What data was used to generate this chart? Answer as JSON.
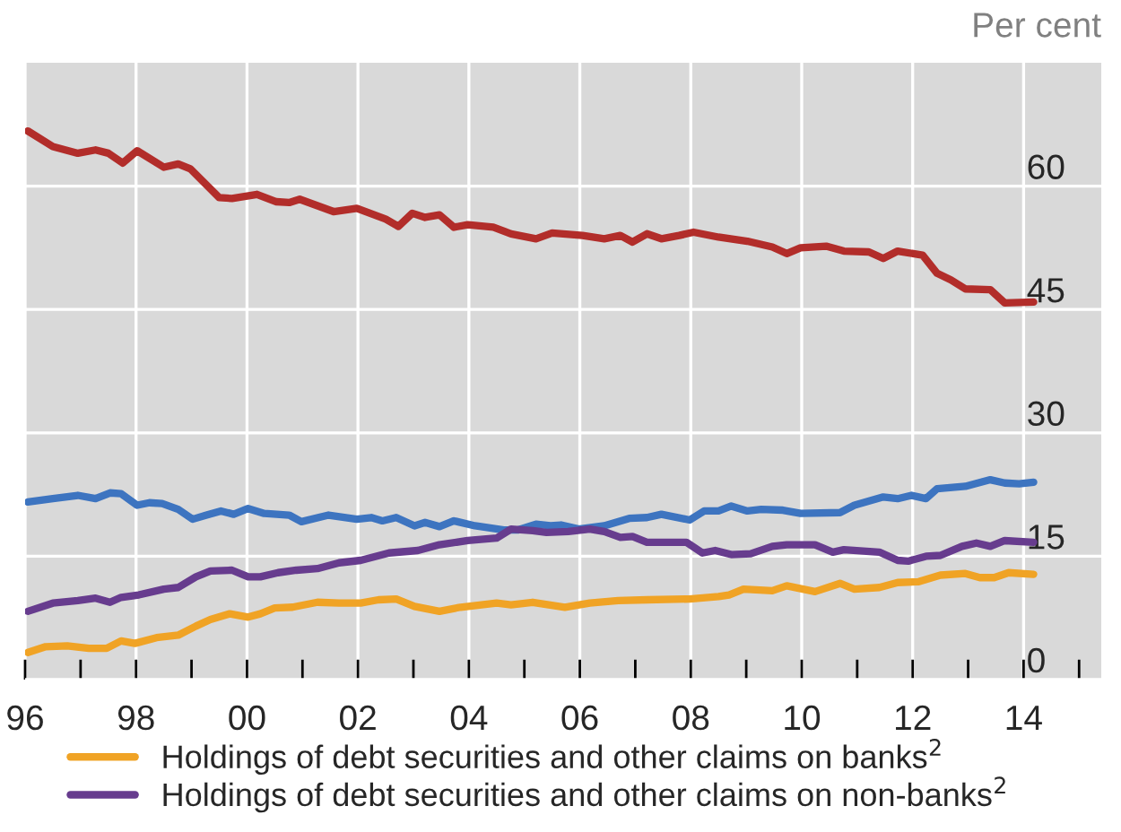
{
  "chart_data": {
    "type": "line",
    "ylabel": "Per cent",
    "xlim": [
      1996,
      2015.4
    ],
    "ylim": [
      0,
      75
    ],
    "xticks": [
      {
        "value": 1996,
        "label": "96"
      },
      {
        "value": 1997,
        "label": null
      },
      {
        "value": 1998,
        "label": "98"
      },
      {
        "value": 1999,
        "label": null
      },
      {
        "value": 2000,
        "label": "00"
      },
      {
        "value": 2001,
        "label": null
      },
      {
        "value": 2002,
        "label": "02"
      },
      {
        "value": 2003,
        "label": null
      },
      {
        "value": 2004,
        "label": "04"
      },
      {
        "value": 2005,
        "label": null
      },
      {
        "value": 2006,
        "label": "06"
      },
      {
        "value": 2007,
        "label": null
      },
      {
        "value": 2008,
        "label": "08"
      },
      {
        "value": 2009,
        "label": null
      },
      {
        "value": 2010,
        "label": "10"
      },
      {
        "value": 2011,
        "label": null
      },
      {
        "value": 2012,
        "label": "12"
      },
      {
        "value": 2013,
        "label": null
      },
      {
        "value": 2014,
        "label": "14"
      },
      {
        "value": 2015,
        "label": null
      }
    ],
    "yticks": [
      0,
      15,
      30,
      45,
      60
    ],
    "grid": true,
    "legend": "bottom",
    "marker": "none",
    "line_style": "solid",
    "series": [
      {
        "color": "#b22d2a",
        "x": [
          1996.05,
          1996.5,
          1996.95,
          1997.27,
          1997.5,
          1997.76,
          1998.02,
          1998.5,
          1998.76,
          1998.98,
          1999.5,
          1999.73,
          2000.18,
          2000.53,
          2000.76,
          2000.95,
          2001.56,
          2001.98,
          2002.5,
          2002.73,
          2002.98,
          2003.21,
          2003.47,
          2003.73,
          2003.98,
          2004.44,
          2004.76,
          2005.21,
          2005.5,
          2006.05,
          2006.44,
          2006.73,
          2006.95,
          2007.21,
          2007.47,
          2007.79,
          2008.05,
          2008.5,
          2009.02,
          2009.47,
          2009.73,
          2009.98,
          2010.44,
          2010.76,
          2011.21,
          2011.47,
          2011.73,
          2012.18,
          2012.44,
          2012.69,
          2012.95,
          2013.4,
          2013.66,
          2014.18
        ],
        "values": [
          66.7,
          64.8,
          64.0,
          64.4,
          64.0,
          62.8,
          64.3,
          62.3,
          62.7,
          62.1,
          58.6,
          58.5,
          59.0,
          58.1,
          58.0,
          58.4,
          56.9,
          57.3,
          56.0,
          55.1,
          56.7,
          56.2,
          56.5,
          55.0,
          55.3,
          55.0,
          54.2,
          53.6,
          54.3,
          54.0,
          53.6,
          54.0,
          53.2,
          54.2,
          53.6,
          54.0,
          54.4,
          53.8,
          53.3,
          52.6,
          51.8,
          52.5,
          52.7,
          52.1,
          52.0,
          51.2,
          52.1,
          51.6,
          49.4,
          48.6,
          47.5,
          47.4,
          45.8,
          45.9
        ]
      },
      {
        "color": "#3d74c0",
        "x": [
          1996.05,
          1996.5,
          1996.95,
          1997.27,
          1997.53,
          1997.73,
          1998.02,
          1998.24,
          1998.47,
          1998.76,
          1999.02,
          1999.27,
          1999.53,
          1999.76,
          2000.02,
          2000.31,
          2000.76,
          2000.98,
          2001.47,
          2001.98,
          2002.24,
          2002.44,
          2002.69,
          2003.02,
          2003.21,
          2003.47,
          2003.73,
          2004.11,
          2004.63,
          2004.89,
          2005.21,
          2005.47,
          2005.66,
          2005.98,
          2006.44,
          2006.89,
          2007.21,
          2007.47,
          2007.98,
          2008.24,
          2008.5,
          2008.73,
          2009.02,
          2009.27,
          2009.66,
          2009.98,
          2010.69,
          2010.95,
          2011.47,
          2011.73,
          2011.98,
          2012.24,
          2012.44,
          2012.95,
          2013.4,
          2013.66,
          2013.92,
          2014.18
        ],
        "values": [
          21.6,
          22.0,
          22.4,
          22.0,
          22.7,
          22.6,
          21.2,
          21.5,
          21.4,
          20.7,
          19.5,
          20.0,
          20.5,
          20.1,
          20.8,
          20.2,
          20.0,
          19.2,
          20.0,
          19.5,
          19.7,
          19.3,
          19.7,
          18.7,
          19.1,
          18.6,
          19.3,
          18.7,
          18.2,
          18.2,
          18.9,
          18.7,
          18.8,
          18.3,
          18.7,
          19.6,
          19.7,
          20.1,
          19.4,
          20.5,
          20.5,
          21.1,
          20.5,
          20.7,
          20.6,
          20.2,
          20.3,
          21.2,
          22.2,
          22.0,
          22.4,
          22.0,
          23.2,
          23.5,
          24.3,
          23.9,
          23.8,
          24.0
        ]
      },
      {
        "name": "Holdings of debt securities and other claims on banks$^{2}$",
        "color": "#f0a325",
        "x": [
          1996.05,
          1996.37,
          1996.76,
          1997.15,
          1997.47,
          1997.73,
          1997.98,
          1998.37,
          1998.76,
          1999.08,
          1999.34,
          1999.69,
          2000.02,
          2000.24,
          2000.5,
          2000.82,
          2001.27,
          2001.66,
          2002.05,
          2002.37,
          2002.69,
          2003.02,
          2003.47,
          2003.85,
          2004.5,
          2004.76,
          2005.15,
          2005.73,
          2006.18,
          2006.69,
          2007.21,
          2007.98,
          2008.5,
          2008.69,
          2008.95,
          2009.47,
          2009.73,
          2010.24,
          2010.69,
          2010.95,
          2011.4,
          2011.73,
          2012.11,
          2012.5,
          2012.95,
          2013.21,
          2013.47,
          2013.73,
          2014.18
        ],
        "values": [
          3.3,
          4.0,
          4.1,
          3.8,
          3.8,
          4.7,
          4.4,
          5.1,
          5.4,
          6.5,
          7.3,
          8.0,
          7.6,
          8.0,
          8.7,
          8.8,
          9.4,
          9.3,
          9.3,
          9.7,
          9.8,
          8.9,
          8.3,
          8.8,
          9.3,
          9.1,
          9.4,
          8.8,
          9.3,
          9.6,
          9.7,
          9.8,
          10.1,
          10.3,
          11.0,
          10.8,
          11.4,
          10.7,
          11.7,
          11.0,
          11.2,
          11.8,
          11.9,
          12.7,
          12.9,
          12.4,
          12.4,
          13.0,
          12.8
        ]
      },
      {
        "name": "Holdings of debt securities and other claims on non-banks$^{2}$",
        "color": "#673c8e",
        "x": [
          1996.05,
          1996.5,
          1996.95,
          1997.27,
          1997.53,
          1997.73,
          1998.05,
          1998.5,
          1998.76,
          1999.08,
          1999.34,
          1999.73,
          2000.02,
          2000.24,
          2000.56,
          2000.89,
          2001.27,
          2001.66,
          2002.05,
          2002.56,
          2003.08,
          2003.47,
          2003.98,
          2004.5,
          2004.76,
          2005.15,
          2005.4,
          2005.79,
          2006.18,
          2006.44,
          2006.73,
          2006.95,
          2007.21,
          2007.92,
          2008.21,
          2008.44,
          2008.73,
          2009.08,
          2009.47,
          2009.73,
          2010.24,
          2010.56,
          2010.76,
          2011.4,
          2011.73,
          2011.92,
          2012.24,
          2012.5,
          2012.89,
          2013.15,
          2013.4,
          2013.66,
          2014.18
        ],
        "values": [
          8.3,
          9.3,
          9.6,
          9.9,
          9.4,
          10.0,
          10.3,
          11.0,
          11.2,
          12.5,
          13.2,
          13.3,
          12.5,
          12.5,
          13.0,
          13.3,
          13.5,
          14.2,
          14.5,
          15.4,
          15.7,
          16.4,
          16.9,
          17.2,
          18.3,
          18.1,
          17.9,
          18.0,
          18.3,
          18.0,
          17.3,
          17.4,
          16.7,
          16.7,
          15.4,
          15.7,
          15.2,
          15.3,
          16.2,
          16.4,
          16.4,
          15.5,
          15.8,
          15.5,
          14.5,
          14.4,
          15.0,
          15.1,
          16.2,
          16.6,
          16.2,
          16.9,
          16.7
        ]
      }
    ]
  }
}
